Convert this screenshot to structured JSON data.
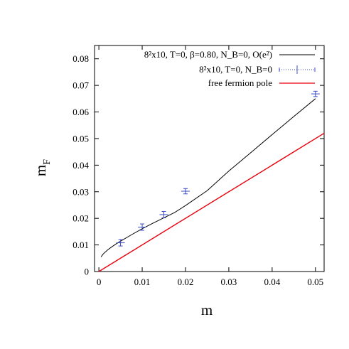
{
  "chart_data": {
    "type": "line",
    "xlabel": "m",
    "ylabel_main": "m",
    "ylabel_sub": "F",
    "xlim": [
      -0.001,
      0.052
    ],
    "ylim": [
      0,
      0.085
    ],
    "xticks": [
      0,
      0.01,
      0.02,
      0.03,
      0.04,
      0.05
    ],
    "xtick_labels": [
      "0",
      "0.01",
      "0.02",
      "0.03",
      "0.04",
      "0.05"
    ],
    "yticks": [
      0,
      0.01,
      0.02,
      0.03,
      0.04,
      0.05,
      0.06,
      0.07,
      0.08
    ],
    "ytick_labels": [
      "0",
      "0.01",
      "0.02",
      "0.03",
      "0.04",
      "0.05",
      "0.06",
      "0.07",
      "0.08"
    ],
    "grid": false,
    "legend_position": "top-right",
    "legend": [
      {
        "text": "8²x10, T=0, β=0.80, N_B=0, O(e²)",
        "color": "#000000"
      },
      {
        "text": "8²x10, T=0, N_B=0",
        "color": "#3c4ac8"
      },
      {
        "text": "free fermion pole",
        "color": "#e8000b"
      }
    ],
    "series": [
      {
        "style": "line",
        "color": "#000000",
        "x": [
          0.0005,
          0.001,
          0.002,
          0.003,
          0.004,
          0.005,
          0.0075,
          0.01,
          0.0125,
          0.015,
          0.0175,
          0.02,
          0.025,
          0.03,
          0.035,
          0.04,
          0.045,
          0.05
        ],
        "y": [
          0.0055,
          0.0066,
          0.0081,
          0.0093,
          0.0104,
          0.0114,
          0.0138,
          0.0161,
          0.0182,
          0.0202,
          0.0222,
          0.0248,
          0.0304,
          0.0378,
          0.0446,
          0.0515,
          0.0583,
          0.065
        ]
      },
      {
        "style": "points",
        "color": "#3c4ac8",
        "x": [
          0.005,
          0.01,
          0.015,
          0.02,
          0.05
        ],
        "y": [
          0.0108,
          0.0167,
          0.0214,
          0.0302,
          0.0668
        ],
        "yerr": [
          0.0012,
          0.0012,
          0.0012,
          0.001,
          0.001
        ]
      },
      {
        "style": "line",
        "color": "#e8000b",
        "x": [
          0,
          0.052
        ],
        "y": [
          0,
          0.052
        ]
      }
    ]
  }
}
